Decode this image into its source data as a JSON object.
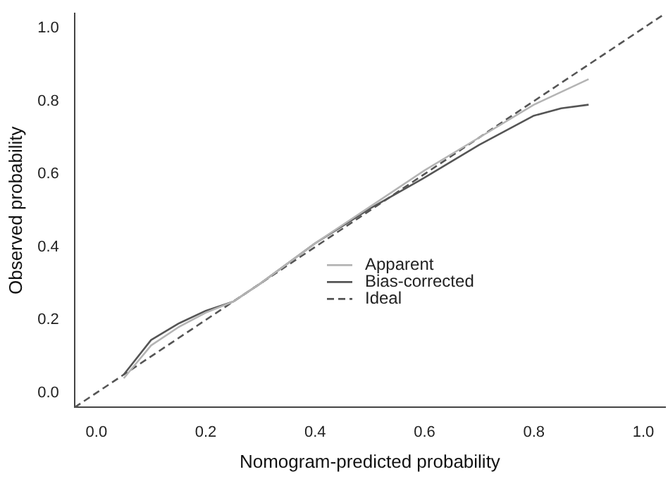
{
  "chart_data": {
    "type": "line",
    "xlabel": "Nomogram-predicted probability",
    "ylabel": "Observed probability",
    "xlim": [
      -0.04,
      1.04
    ],
    "ylim": [
      -0.04,
      1.04
    ],
    "xticks": [
      {
        "value": 0,
        "label": "0.0"
      },
      0.2,
      0.4,
      0.6,
      0.8,
      {
        "value": 1,
        "label": "1.0"
      }
    ],
    "yticks": [
      {
        "value": 0,
        "label": "0.0"
      },
      0.2,
      0.4,
      0.6,
      0.8,
      {
        "value": 1,
        "label": "1.0"
      }
    ],
    "grid": false,
    "legend": "bottom right",
    "marker": "none",
    "series": [
      {
        "name": "Apparent",
        "color": "#b4b4b4",
        "line_style": "solid",
        "x": [
          0.05,
          0.1,
          0.15,
          0.2,
          0.25,
          0.3,
          0.4,
          0.5,
          0.6,
          0.7,
          0.8,
          0.9
        ],
        "values": [
          0.04,
          0.13,
          0.18,
          0.22,
          0.25,
          0.3,
          0.41,
          0.51,
          0.61,
          0.7,
          0.79,
          0.86
        ]
      },
      {
        "name": "Bias-corrected",
        "color": "#555555",
        "line_style": "solid",
        "x": [
          0.05,
          0.1,
          0.15,
          0.2,
          0.25,
          0.3,
          0.4,
          0.5,
          0.6,
          0.7,
          0.8,
          0.85,
          0.9
        ],
        "values": [
          0.05,
          0.145,
          0.19,
          0.225,
          0.25,
          0.3,
          0.41,
          0.505,
          0.59,
          0.68,
          0.76,
          0.78,
          0.79
        ]
      },
      {
        "name": "Ideal",
        "color": "#555555",
        "line_style": "dashed",
        "x": [
          -0.04,
          1.04
        ],
        "values": [
          -0.04,
          1.04
        ]
      }
    ]
  }
}
